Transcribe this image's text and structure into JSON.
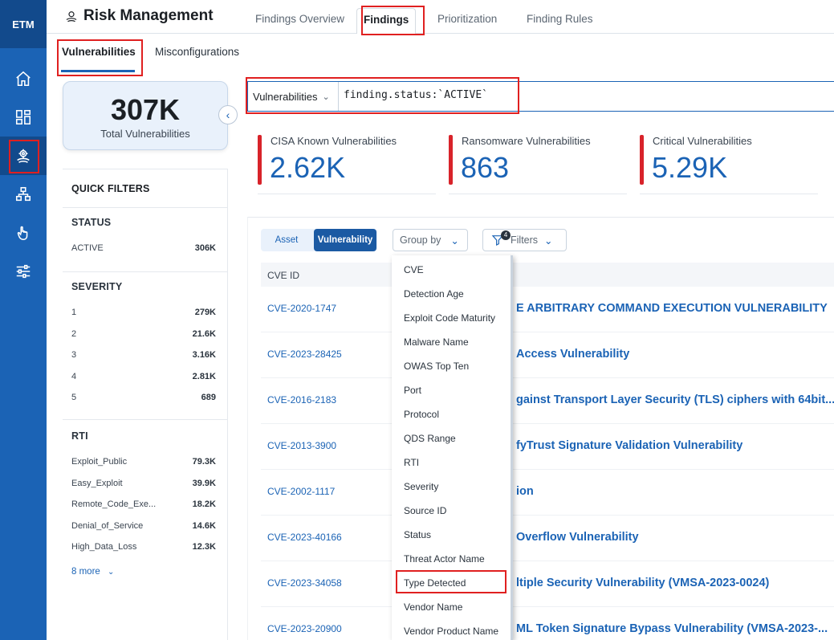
{
  "rail": {
    "logo": "ETM",
    "items": [
      "home-icon",
      "dashboard-icon",
      "risk-management-icon",
      "assets-icon",
      "touch-icon",
      "settings-sliders-icon"
    ]
  },
  "header": {
    "title": "Risk Management",
    "tabs": [
      {
        "label": "Findings Overview"
      },
      {
        "label": "Findings"
      },
      {
        "label": "Prioritization"
      },
      {
        "label": "Finding Rules"
      }
    ]
  },
  "subtabs": {
    "vulnerabilities": "Vulnerabilities",
    "misconfigurations": "Misconfigurations"
  },
  "total": {
    "value": "307K",
    "label": "Total Vulnerabilities"
  },
  "quick_filters": {
    "title": "QUICK FILTERS",
    "status": {
      "title": "STATUS",
      "rows": [
        {
          "label": "ACTIVE",
          "count": "306K"
        }
      ]
    },
    "severity": {
      "title": "SEVERITY",
      "rows": [
        {
          "label": "1",
          "count": "279K"
        },
        {
          "label": "2",
          "count": "21.6K"
        },
        {
          "label": "3",
          "count": "3.16K"
        },
        {
          "label": "4",
          "count": "2.81K"
        },
        {
          "label": "5",
          "count": "689"
        }
      ]
    },
    "rti": {
      "title": "RTI",
      "rows": [
        {
          "label": "Exploit_Public",
          "count": "79.3K"
        },
        {
          "label": "Easy_Exploit",
          "count": "39.9K"
        },
        {
          "label": "Remote_Code_Exe...",
          "count": "18.2K"
        },
        {
          "label": "Denial_of_Service",
          "count": "14.6K"
        },
        {
          "label": "High_Data_Loss",
          "count": "12.3K"
        }
      ],
      "more": "8 more"
    }
  },
  "search": {
    "scope": "Vulnerabilities",
    "query": "finding.status:`ACTIVE`"
  },
  "stats": [
    {
      "label": "CISA Known Vulnerabilities",
      "value": "2.62K"
    },
    {
      "label": "Ransomware Vulnerabilities",
      "value": "863"
    },
    {
      "label": "Critical Vulnerabilities",
      "value": "5.29K"
    }
  ],
  "toolbar": {
    "asset": "Asset",
    "vulnerability": "Vulnerability",
    "group_by": "Group by",
    "filters": "Filters",
    "filters_count": "4"
  },
  "table": {
    "col_cve": "CVE ID",
    "rows": [
      {
        "cve": "CVE-2020-1747",
        "title": "E ARBITRARY COMMAND EXECUTION VULNERABILITY"
      },
      {
        "cve": "CVE-2023-28425",
        "title": "Access Vulnerability"
      },
      {
        "cve": "CVE-2016-2183",
        "title": "gainst Transport Layer Security (TLS) ciphers with 64bit..."
      },
      {
        "cve": "CVE-2013-3900",
        "title": "fyTrust Signature Validation Vulnerability"
      },
      {
        "cve": "CVE-2002-1117",
        "title": "ion"
      },
      {
        "cve": "CVE-2023-40166",
        "title": "Overflow Vulnerability"
      },
      {
        "cve": "CVE-2023-34058",
        "title": "ltiple Security Vulnerability (VMSA-2023-0024)"
      },
      {
        "cve": "CVE-2023-20900",
        "title": "ML Token Signature Bypass Vulnerability (VMSA-2023-..."
      }
    ]
  },
  "group_by_options": [
    "CVE",
    "Detection Age",
    "Exploit Code Maturity",
    "Malware Name",
    "OWAS Top Ten",
    "Port",
    "Protocol",
    "QDS Range",
    "RTI",
    "Severity",
    "Source ID",
    "Status",
    "Threat Actor Name",
    "Type Detected",
    "Vendor Name",
    "Vendor Product Name"
  ],
  "colors": {
    "rail": "#1b63b5",
    "rail_active": "#124a8c",
    "accent": "#1b63b5",
    "stat_bar": "#d8232a",
    "highlight": "#e02020"
  }
}
